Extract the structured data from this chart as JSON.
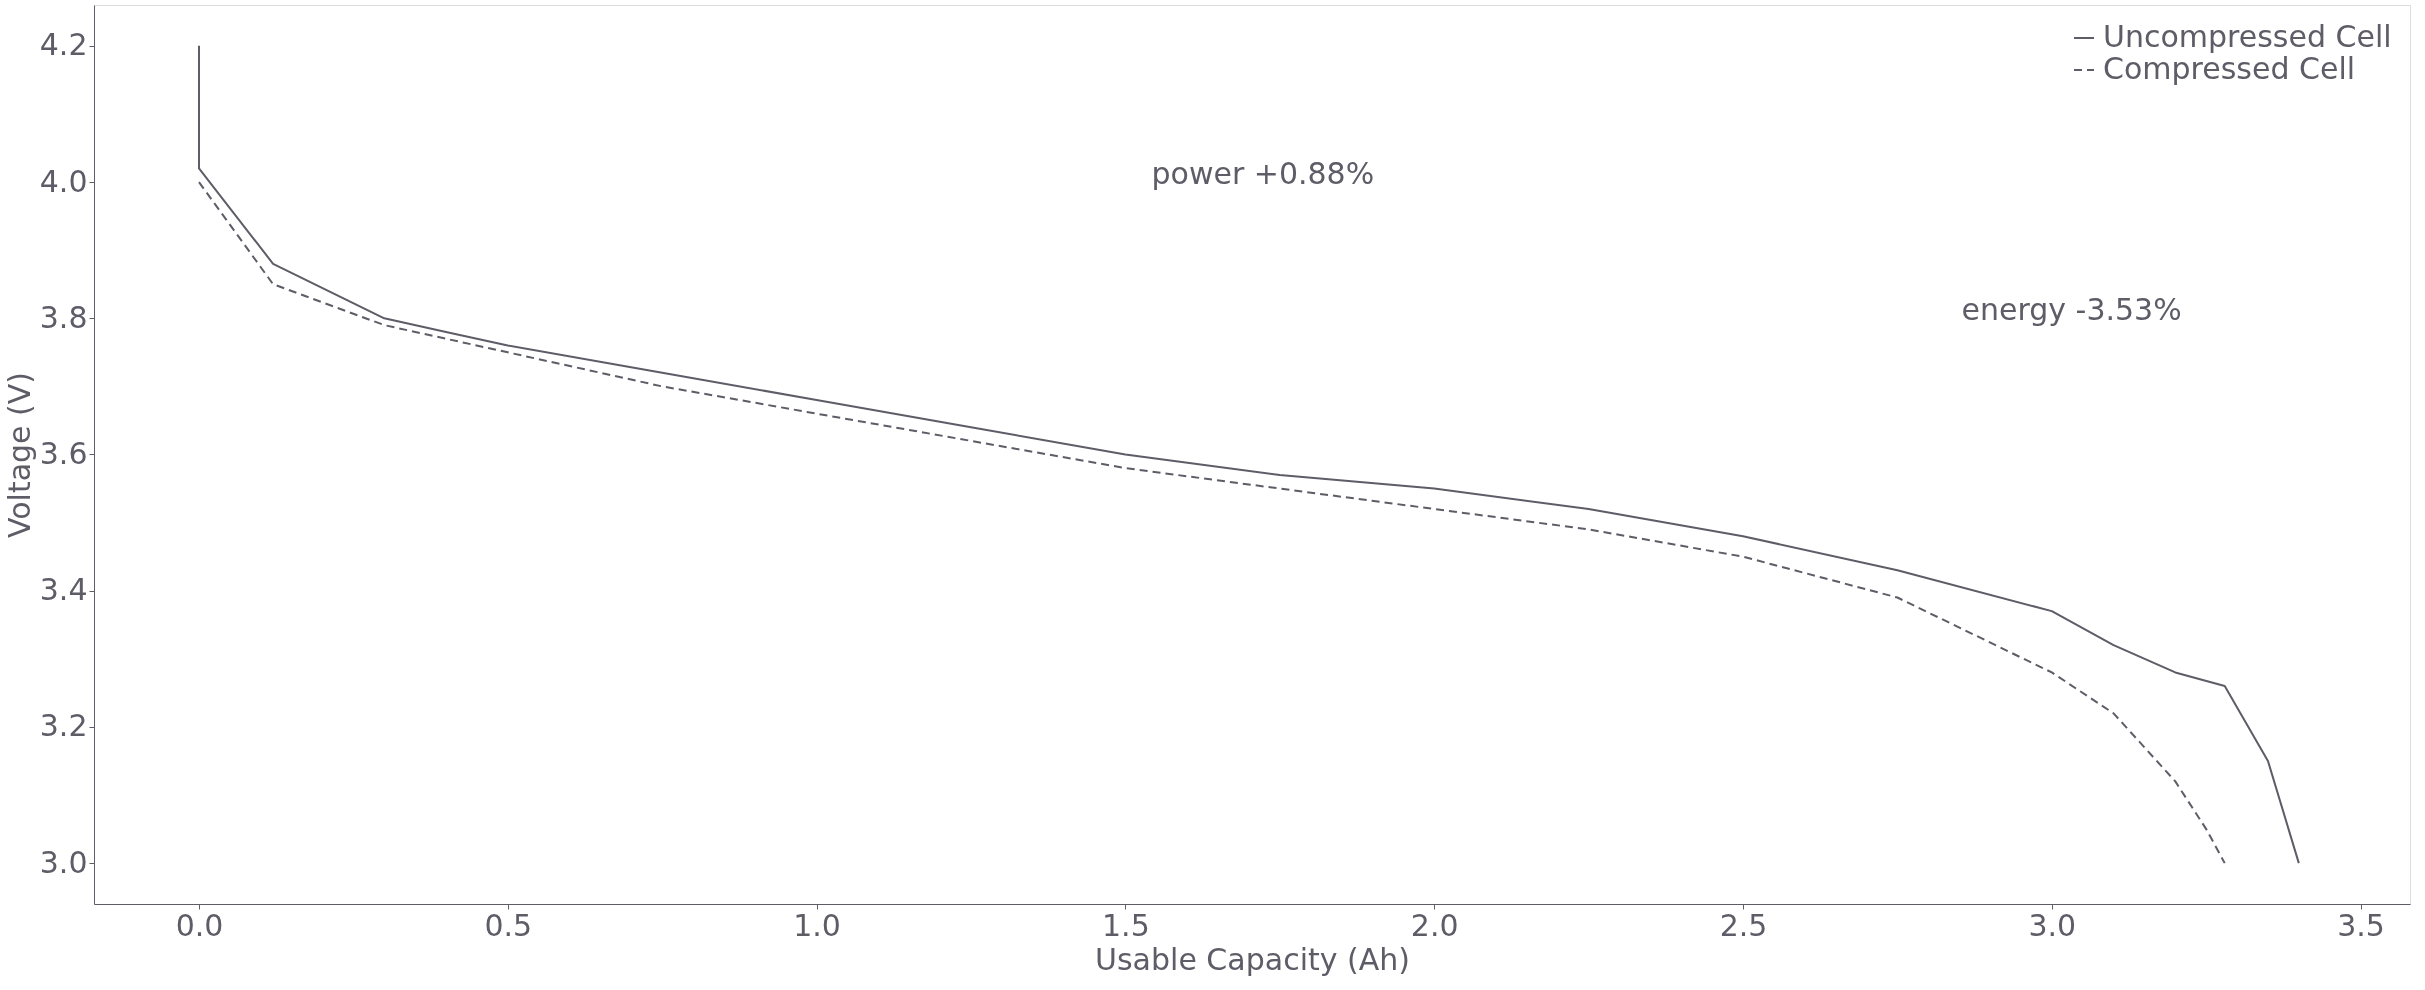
{
  "chart_data": {
    "type": "line",
    "xlabel": "Usable Capacity (Ah)",
    "ylabel": "Voltage (V)",
    "series": [
      {
        "name": "Uncompressed Cell",
        "color": "#5e5c66",
        "line_style": "solid",
        "x": [
          0.0,
          0.0,
          0.12,
          0.3,
          0.4,
          0.5,
          0.75,
          1.0,
          1.25,
          1.5,
          1.75,
          2.0,
          2.25,
          2.5,
          2.75,
          3.0,
          3.1,
          3.2,
          3.28,
          3.35,
          3.4
        ],
        "values": [
          4.2,
          4.02,
          3.88,
          3.8,
          3.78,
          3.76,
          3.72,
          3.68,
          3.64,
          3.6,
          3.57,
          3.55,
          3.52,
          3.48,
          3.43,
          3.37,
          3.32,
          3.28,
          3.26,
          3.15,
          3.0
        ]
      },
      {
        "name": "Compressed Cell",
        "color": "#5e5c66",
        "line_style": "dashed",
        "x": [
          0.0,
          0.12,
          0.3,
          0.4,
          0.5,
          0.75,
          1.0,
          1.25,
          1.5,
          1.75,
          2.0,
          2.25,
          2.5,
          2.75,
          3.0,
          3.1,
          3.2,
          3.25,
          3.28
        ],
        "values": [
          4.0,
          3.85,
          3.79,
          3.77,
          3.75,
          3.7,
          3.66,
          3.62,
          3.58,
          3.55,
          3.52,
          3.49,
          3.45,
          3.39,
          3.28,
          3.22,
          3.12,
          3.05,
          3.0
        ]
      }
    ],
    "annotations": [
      "power +0.88%",
      "energy -3.53%"
    ],
    "xlim": [
      -0.17,
      3.58
    ],
    "xticks": [
      {
        "value": 0,
        "label": "0.0"
      },
      0.5,
      {
        "value": 1,
        "label": "1.0"
      },
      1.5,
      {
        "value": 2,
        "label": "2.0"
      },
      2.5,
      {
        "value": 3,
        "label": "3.0"
      },
      3.5
    ],
    "ylim": [
      2.94,
      4.26
    ],
    "yticks": [
      {
        "value": 3,
        "label": "3.0"
      },
      3.2,
      3.4,
      3.6,
      3.8,
      {
        "value": 4,
        "label": "4.0"
      },
      4.2
    ],
    "grid": false,
    "legend": "top right",
    "marker": "none"
  }
}
